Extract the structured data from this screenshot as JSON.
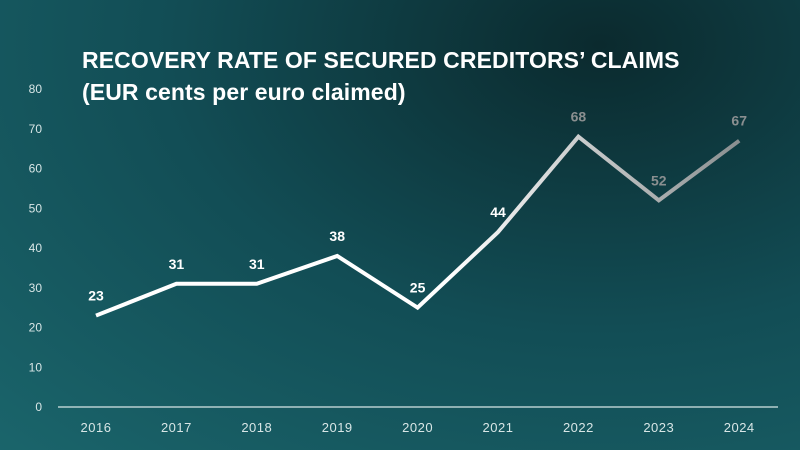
{
  "chart_data": {
    "type": "line",
    "title_line1": "RECOVERY RATE OF SECURED CREDITORS’ CLAIMS",
    "title_line2": "(EUR cents per euro claimed)",
    "categories": [
      "2016",
      "2017",
      "2018",
      "2019",
      "2020",
      "2021",
      "2022",
      "2023",
      "2024"
    ],
    "values": [
      23,
      31,
      31,
      38,
      25,
      44,
      68,
      52,
      67
    ],
    "data_labels": [
      "23",
      "31",
      "31",
      "38",
      "25",
      "44",
      "68",
      "52",
      "67"
    ],
    "ylim": [
      0,
      80
    ],
    "yticks": [
      "0",
      "10",
      "20",
      "30",
      "40",
      "50",
      "60",
      "70",
      "80"
    ],
    "grid": false,
    "colors": {
      "line_start": "#ffffff",
      "line_end": "#8a8f90",
      "label_light": "#ffffff",
      "label_dark": "#8a8f90",
      "axis": "#d8e6e6"
    }
  }
}
